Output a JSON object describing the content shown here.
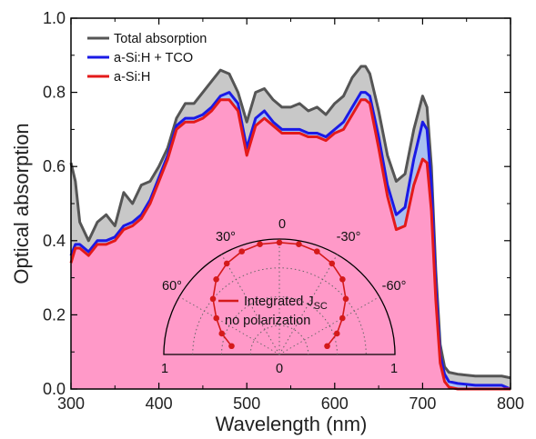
{
  "chart_data": {
    "type": "area",
    "xlabel": "Wavelength (nm)",
    "ylabel": "Optical absorption",
    "xlim": [
      300,
      800
    ],
    "ylim": [
      0.0,
      1.0
    ],
    "x_ticks": [
      "300",
      "400",
      "500",
      "600",
      "700",
      "800"
    ],
    "y_ticks": [
      "0.0",
      "0.2",
      "0.4",
      "0.6",
      "0.8",
      "1.0"
    ],
    "legend_position": "top-left",
    "series": [
      {
        "name": "Total absorption",
        "color": "#555555",
        "fill": "#c8c8c8",
        "x": [
          300,
          305,
          310,
          320,
          330,
          340,
          350,
          360,
          370,
          380,
          390,
          400,
          410,
          420,
          430,
          440,
          450,
          460,
          470,
          480,
          490,
          500,
          510,
          520,
          530,
          540,
          550,
          560,
          570,
          580,
          590,
          600,
          610,
          620,
          630,
          635,
          640,
          650,
          660,
          670,
          680,
          690,
          700,
          705,
          710,
          715,
          720,
          725,
          730,
          740,
          760,
          780,
          790,
          800
        ],
        "values": [
          0.61,
          0.56,
          0.45,
          0.4,
          0.45,
          0.47,
          0.44,
          0.53,
          0.5,
          0.55,
          0.56,
          0.6,
          0.65,
          0.73,
          0.77,
          0.77,
          0.8,
          0.83,
          0.86,
          0.85,
          0.8,
          0.72,
          0.8,
          0.81,
          0.78,
          0.76,
          0.76,
          0.77,
          0.75,
          0.76,
          0.74,
          0.77,
          0.79,
          0.84,
          0.87,
          0.87,
          0.85,
          0.75,
          0.63,
          0.56,
          0.58,
          0.7,
          0.79,
          0.76,
          0.6,
          0.32,
          0.12,
          0.06,
          0.045,
          0.04,
          0.035,
          0.035,
          0.035,
          0.03
        ]
      },
      {
        "name": "a-Si:H + TCO",
        "color": "#1a1ae6",
        "fill": "#a9c0f0",
        "x": [
          300,
          305,
          310,
          320,
          330,
          340,
          350,
          360,
          370,
          380,
          390,
          400,
          410,
          420,
          430,
          440,
          450,
          460,
          470,
          480,
          490,
          500,
          510,
          520,
          530,
          540,
          550,
          560,
          570,
          580,
          590,
          600,
          610,
          620,
          630,
          635,
          640,
          650,
          660,
          670,
          680,
          690,
          700,
          705,
          710,
          715,
          720,
          725,
          730,
          740,
          760,
          780,
          790,
          800
        ],
        "values": [
          0.36,
          0.39,
          0.39,
          0.37,
          0.4,
          0.4,
          0.41,
          0.44,
          0.45,
          0.47,
          0.51,
          0.57,
          0.63,
          0.71,
          0.73,
          0.73,
          0.74,
          0.76,
          0.79,
          0.8,
          0.77,
          0.65,
          0.73,
          0.75,
          0.72,
          0.7,
          0.7,
          0.7,
          0.69,
          0.69,
          0.68,
          0.7,
          0.72,
          0.76,
          0.8,
          0.8,
          0.79,
          0.68,
          0.55,
          0.47,
          0.49,
          0.62,
          0.72,
          0.7,
          0.55,
          0.28,
          0.09,
          0.04,
          0.02,
          0.015,
          0.01,
          0.01,
          0.01,
          0.0
        ]
      },
      {
        "name": "a-Si:H",
        "color": "#e41a1a",
        "fill": "#ff99c8",
        "x": [
          300,
          305,
          310,
          320,
          330,
          340,
          350,
          360,
          370,
          380,
          390,
          400,
          410,
          420,
          430,
          440,
          450,
          460,
          470,
          480,
          490,
          500,
          510,
          520,
          530,
          540,
          550,
          560,
          570,
          580,
          590,
          600,
          610,
          620,
          630,
          635,
          640,
          650,
          660,
          670,
          680,
          690,
          700,
          705,
          710,
          715,
          720,
          725,
          730,
          740,
          760,
          780,
          790,
          800
        ],
        "values": [
          0.34,
          0.38,
          0.38,
          0.36,
          0.39,
          0.39,
          0.4,
          0.43,
          0.44,
          0.46,
          0.5,
          0.56,
          0.62,
          0.7,
          0.72,
          0.72,
          0.73,
          0.75,
          0.78,
          0.78,
          0.75,
          0.63,
          0.71,
          0.73,
          0.71,
          0.69,
          0.69,
          0.69,
          0.68,
          0.68,
          0.67,
          0.69,
          0.7,
          0.74,
          0.78,
          0.78,
          0.77,
          0.65,
          0.52,
          0.43,
          0.44,
          0.55,
          0.62,
          0.61,
          0.48,
          0.24,
          0.07,
          0.02,
          0.005,
          0.0,
          0.0,
          0.0,
          0.0,
          0.0
        ]
      }
    ],
    "inset": {
      "type": "polar",
      "legend": "Integrated J",
      "legend_subscript": "SC",
      "legend_line2": "no polarization",
      "series_color": "#d41a1a",
      "angle_labels": [
        "0",
        "30°",
        "-30°",
        "60°",
        "-60°"
      ],
      "radial_labels": [
        "1",
        "0",
        "1"
      ],
      "angles_deg": [
        -80,
        -70,
        -60,
        -50,
        -40,
        -30,
        -20,
        -10,
        0,
        10,
        20,
        30,
        40,
        50,
        60,
        70,
        80
      ],
      "radius": [
        0.42,
        0.53,
        0.63,
        0.75,
        0.85,
        0.91,
        0.95,
        0.97,
        0.97,
        0.97,
        0.95,
        0.91,
        0.85,
        0.75,
        0.63,
        0.53,
        0.42
      ]
    }
  }
}
